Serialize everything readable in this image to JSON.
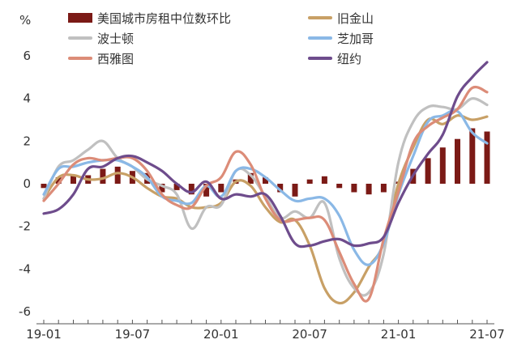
{
  "unit_label": "%",
  "chart_data": {
    "type": "bar+line",
    "x_categories": [
      "19-01",
      "19-02",
      "19-03",
      "19-04",
      "19-05",
      "19-06",
      "19-07",
      "19-08",
      "19-09",
      "19-10",
      "19-11",
      "19-12",
      "20-01",
      "20-02",
      "20-03",
      "20-04",
      "20-05",
      "20-06",
      "20-07",
      "20-08",
      "20-09",
      "20-10",
      "20-11",
      "20-12",
      "21-01",
      "21-02",
      "21-03",
      "21-04",
      "21-05",
      "21-06",
      "21-07"
    ],
    "x_tick_labels": [
      "19-01",
      "19-07",
      "20-01",
      "20-07",
      "21-01",
      "21-07"
    ],
    "y_ticks": [
      -6,
      -4,
      -2,
      0,
      2,
      4,
      6
    ],
    "ylim": [
      -6.3,
      6.6
    ],
    "grid": false,
    "legend_position": "top",
    "bar_series": {
      "name": "美国城市房租中位数环比",
      "color": "#7b1a16",
      "values": [
        -0.2,
        0.3,
        0.4,
        0.4,
        0.7,
        0.8,
        0.6,
        0.5,
        -0.4,
        -0.3,
        -0.5,
        -0.6,
        -0.4,
        0.2,
        0.5,
        0.3,
        -0.4,
        -0.6,
        0.2,
        0.35,
        -0.2,
        -0.4,
        -0.5,
        -0.4,
        0.1,
        0.7,
        1.2,
        1.7,
        2.1,
        2.6,
        2.45
      ]
    },
    "line_series": [
      {
        "name": "旧金山",
        "color": "#c8a066",
        "values": [
          -0.7,
          0.3,
          0.4,
          0.2,
          0.25,
          0.5,
          0.3,
          -0.2,
          -0.6,
          -0.7,
          -1.1,
          -1.1,
          -0.9,
          0.1,
          -0.1,
          -1.1,
          -1.8,
          -1.7,
          -2.9,
          -4.9,
          -5.6,
          -5.1,
          -3.9,
          -2.8,
          0.0,
          1.7,
          3.0,
          2.8,
          3.2,
          3.0,
          3.15
        ]
      },
      {
        "name": "波士顿",
        "color": "#c0c0c0",
        "values": [
          -0.7,
          0.8,
          1.1,
          1.6,
          2.0,
          1.2,
          0.8,
          0.2,
          -0.1,
          -0.5,
          -2.1,
          -1.1,
          -1.0,
          0.6,
          0.4,
          -0.6,
          -1.6,
          -1.3,
          -1.6,
          -0.9,
          -3.5,
          -4.9,
          -5.1,
          -3.3,
          1.0,
          2.9,
          3.6,
          3.6,
          3.5,
          4.0,
          3.7
        ]
      },
      {
        "name": "芝加哥",
        "color": "#8ab8e6",
        "values": [
          -0.5,
          0.7,
          0.8,
          1.0,
          1.1,
          1.1,
          0.8,
          0.3,
          -0.6,
          -0.8,
          -0.9,
          -0.1,
          -0.6,
          0.6,
          0.7,
          0.3,
          -0.3,
          -0.8,
          -0.7,
          -0.7,
          -1.5,
          -3.1,
          -3.8,
          -2.8,
          -0.5,
          1.3,
          2.9,
          3.2,
          3.4,
          2.4,
          1.9
        ]
      },
      {
        "name": "西雅图",
        "color": "#dc8c78",
        "values": [
          -0.8,
          0.0,
          0.9,
          1.2,
          1.1,
          1.2,
          1.2,
          0.6,
          -0.5,
          -1.0,
          -1.1,
          -0.1,
          0.3,
          1.5,
          0.9,
          -0.7,
          -1.7,
          -1.7,
          -1.6,
          -1.7,
          -3.2,
          -4.7,
          -5.4,
          -2.6,
          -0.4,
          1.9,
          2.7,
          3.1,
          3.5,
          4.5,
          4.3
        ]
      },
      {
        "name": "纽约",
        "color": "#6e4c8c",
        "values": [
          -1.4,
          -1.2,
          -0.5,
          0.7,
          0.8,
          1.2,
          1.3,
          1.0,
          0.6,
          0.0,
          -0.4,
          0.1,
          -0.7,
          -0.5,
          -0.6,
          -0.5,
          -1.5,
          -2.8,
          -2.9,
          -2.7,
          -2.6,
          -2.9,
          -2.8,
          -2.5,
          -0.9,
          0.4,
          1.4,
          2.3,
          4.1,
          5.0,
          5.7
        ]
      }
    ]
  }
}
